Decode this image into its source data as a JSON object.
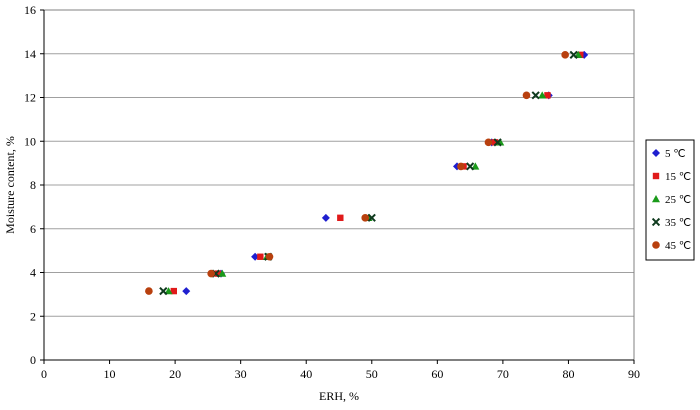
{
  "chart_data": {
    "type": "scatter",
    "xlabel": "ERH, %",
    "ylabel": "Moisture content, %",
    "xlim": [
      0,
      90
    ],
    "ylim": [
      0,
      16
    ],
    "xticks": [
      0,
      10,
      20,
      30,
      40,
      50,
      60,
      70,
      80,
      90
    ],
    "yticks": [
      0,
      2,
      4,
      6,
      8,
      10,
      12,
      14,
      16
    ],
    "grid": "horizontal",
    "legend_position": "right",
    "series": [
      {
        "name": "5 ℃",
        "marker": "diamond",
        "color": "#1f1fcf",
        "points": [
          [
            21.7,
            3.15
          ],
          [
            27.0,
            3.95
          ],
          [
            32.2,
            4.72
          ],
          [
            43.0,
            6.5
          ],
          [
            63.0,
            8.85
          ],
          [
            68.3,
            9.95
          ],
          [
            77.0,
            12.1
          ],
          [
            82.4,
            13.95
          ]
        ]
      },
      {
        "name": "15 ℃",
        "marker": "square",
        "color": "#e01a1a",
        "points": [
          [
            19.8,
            3.15
          ],
          [
            26.5,
            3.95
          ],
          [
            33.0,
            4.72
          ],
          [
            45.2,
            6.5
          ],
          [
            64.0,
            8.85
          ],
          [
            68.8,
            9.95
          ],
          [
            76.8,
            12.1
          ],
          [
            81.8,
            13.95
          ]
        ]
      },
      {
        "name": "25 ℃",
        "marker": "triangle",
        "color": "#1a9a1a",
        "points": [
          [
            19.0,
            3.15
          ],
          [
            27.2,
            3.95
          ],
          [
            34.0,
            4.72
          ],
          [
            49.5,
            6.5
          ],
          [
            65.8,
            8.85
          ],
          [
            69.6,
            9.95
          ],
          [
            76.0,
            12.1
          ],
          [
            81.5,
            13.95
          ]
        ]
      },
      {
        "name": "35 ℃",
        "marker": "x",
        "color": "#0f3a1e",
        "points": [
          [
            18.2,
            3.15
          ],
          [
            26.2,
            3.95
          ],
          [
            34.2,
            4.72
          ],
          [
            50.0,
            6.5
          ],
          [
            65.0,
            8.85
          ],
          [
            69.2,
            9.95
          ],
          [
            75.0,
            12.1
          ],
          [
            80.8,
            13.95
          ]
        ]
      },
      {
        "name": "45 ℃",
        "marker": "circle",
        "color": "#b8400e",
        "points": [
          [
            16.0,
            3.15
          ],
          [
            25.5,
            3.95
          ],
          [
            34.4,
            4.72
          ],
          [
            49.0,
            6.5
          ],
          [
            63.6,
            8.85
          ],
          [
            67.8,
            9.95
          ],
          [
            73.6,
            12.1
          ],
          [
            79.5,
            13.95
          ]
        ]
      }
    ]
  }
}
